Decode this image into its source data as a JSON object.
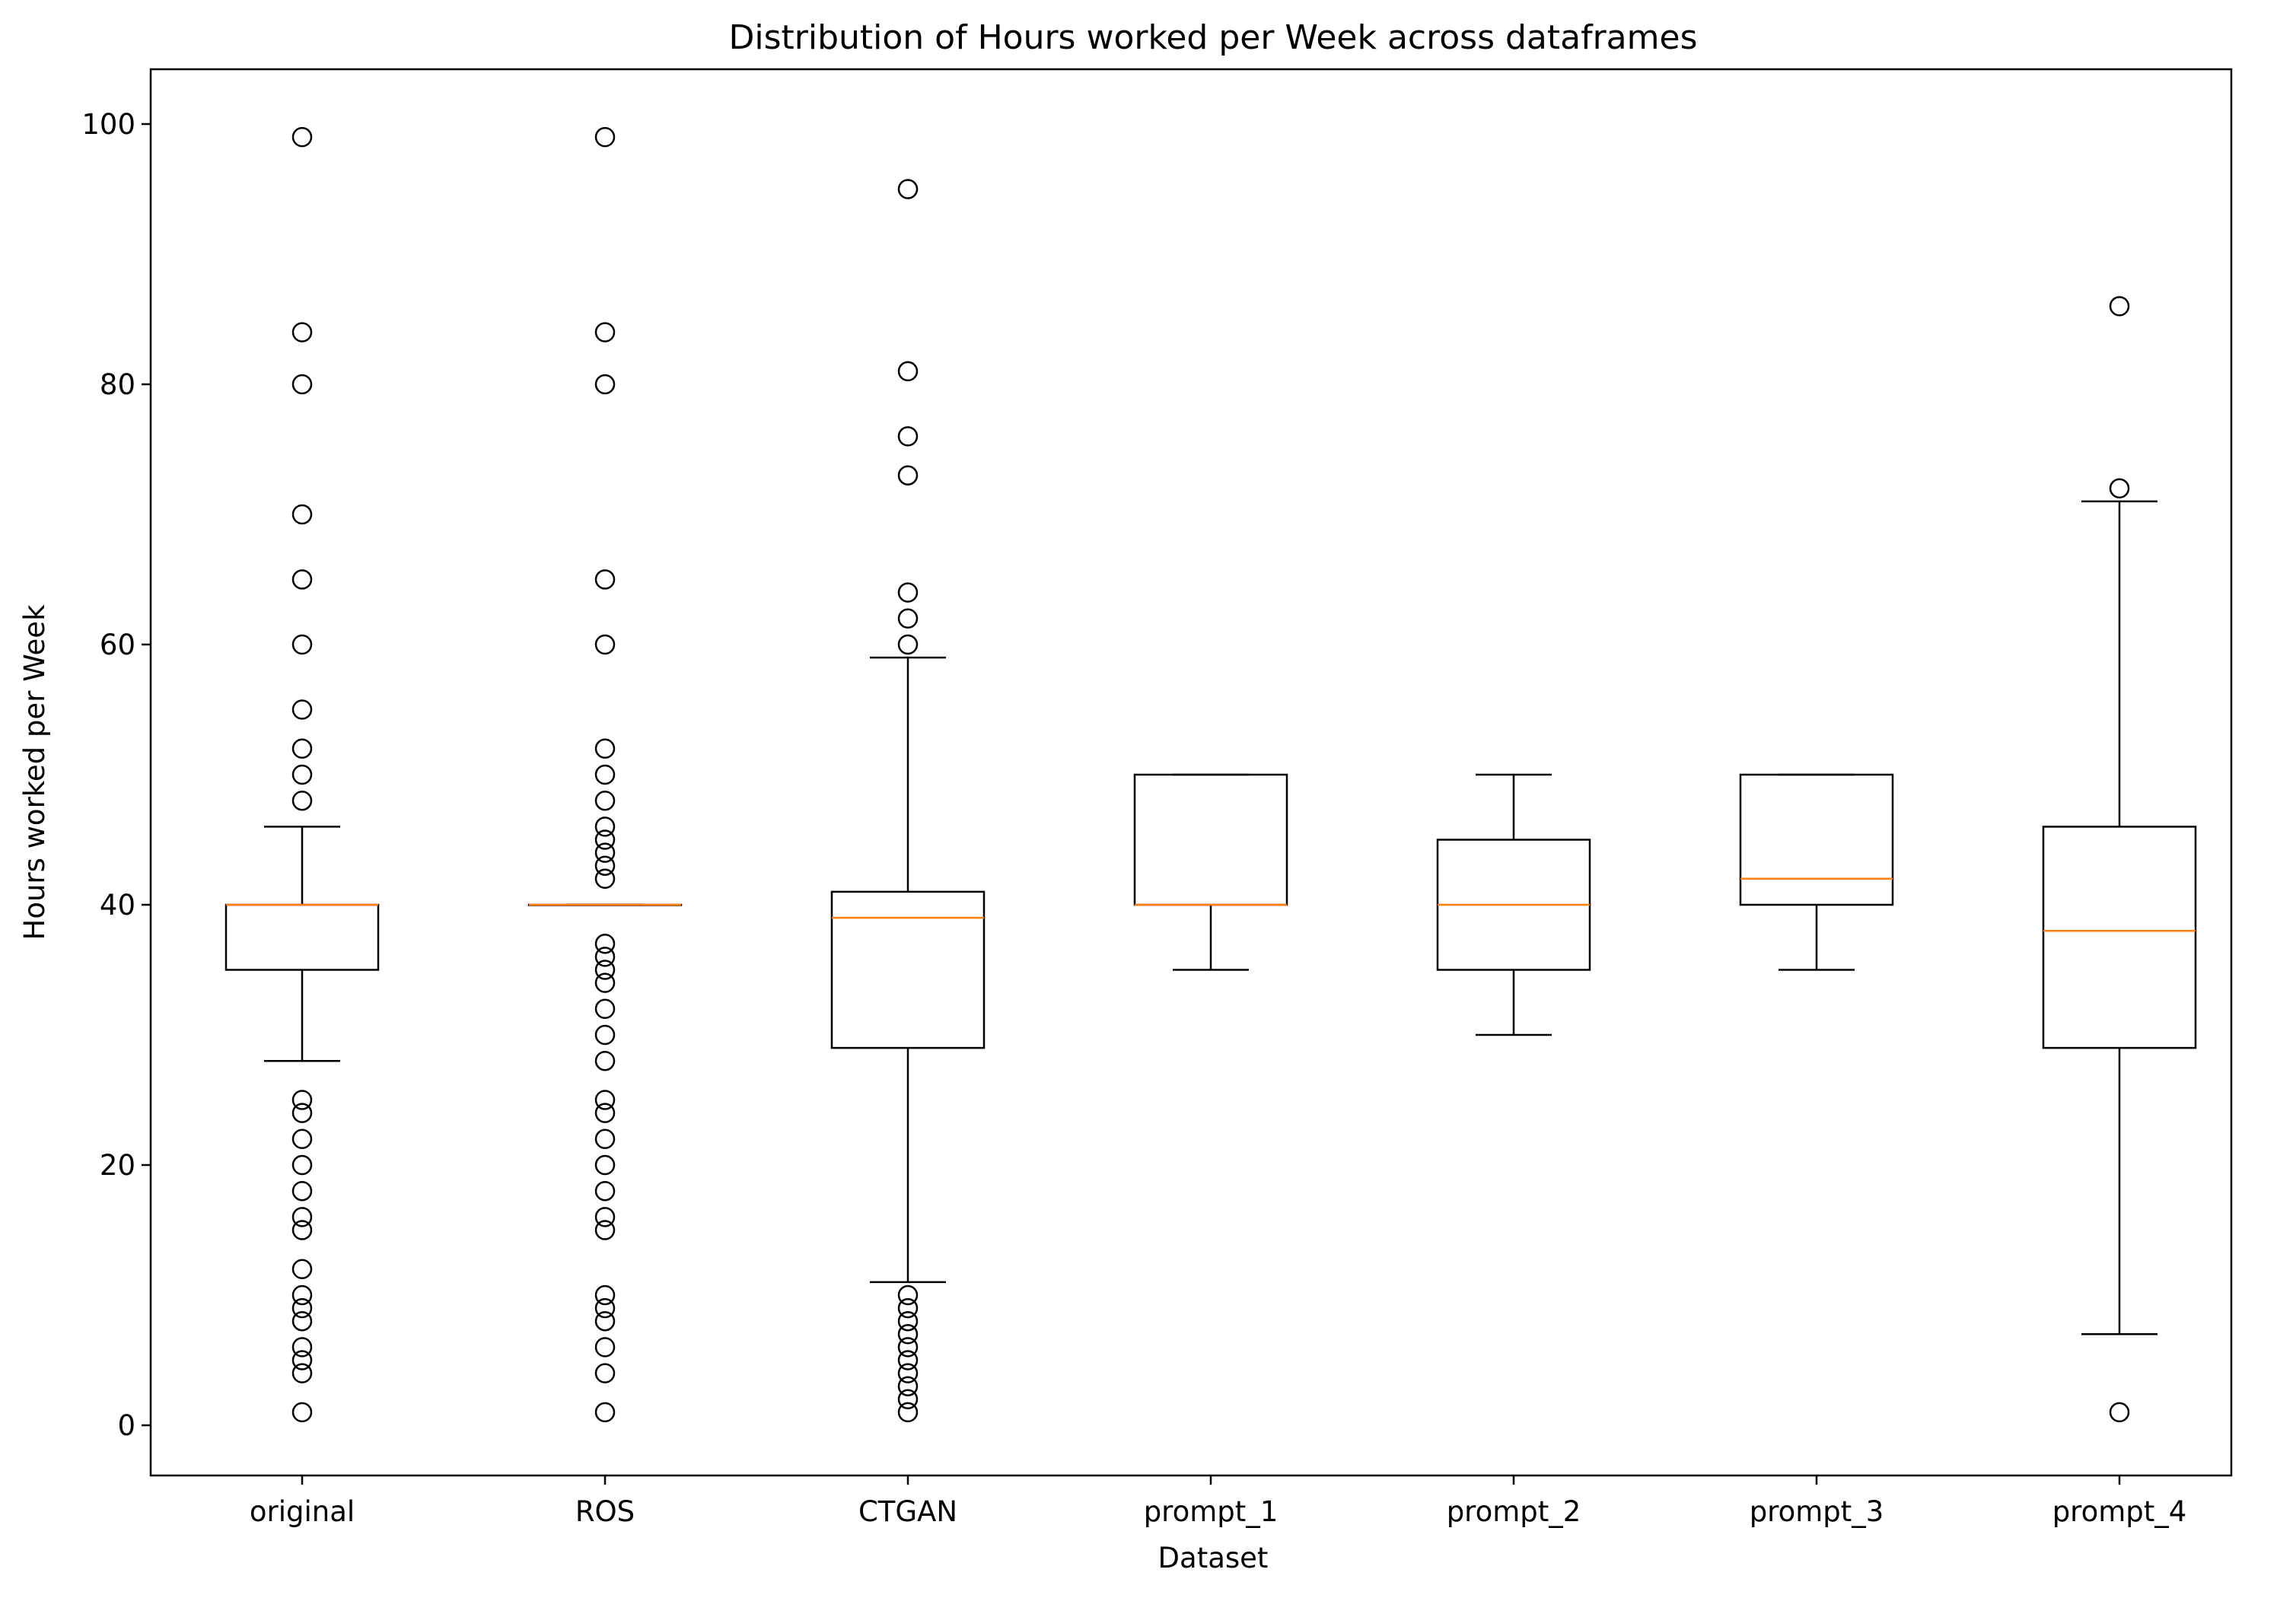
{
  "chart_data": {
    "type": "box",
    "title": "Distribution of Hours worked per Week across dataframes",
    "xlabel": "Dataset",
    "ylabel": "Hours worked per Week",
    "ylim": [
      -4,
      104
    ],
    "yticks": [
      0,
      20,
      40,
      60,
      80,
      100
    ],
    "grid": false,
    "colors": {
      "box": "#000000",
      "median": "#ff7f0e",
      "background": "#ffffff"
    },
    "categories": [
      "original",
      "ROS",
      "CTGAN",
      "prompt_1",
      "prompt_2",
      "prompt_3",
      "prompt_4"
    ],
    "boxes": [
      {
        "name": "original",
        "whisker_low": 28,
        "q1": 35,
        "median": 40,
        "q3": 40,
        "whisker_high": 46,
        "outliers": [
          1,
          4,
          5,
          6,
          8,
          9,
          10,
          12,
          15,
          16,
          18,
          20,
          22,
          24,
          25,
          48,
          50,
          52,
          55,
          60,
          65,
          70,
          80,
          84,
          99
        ]
      },
      {
        "name": "ROS",
        "whisker_low": 40,
        "q1": 40,
        "median": 40,
        "q3": 40,
        "whisker_high": 40,
        "outliers": [
          1,
          4,
          6,
          8,
          9,
          10,
          15,
          16,
          18,
          20,
          22,
          24,
          25,
          28,
          30,
          32,
          34,
          35,
          36,
          37,
          42,
          43,
          44,
          45,
          46,
          48,
          50,
          52,
          60,
          65,
          80,
          84,
          99
        ]
      },
      {
        "name": "CTGAN",
        "whisker_low": 11,
        "q1": 29,
        "median": 39,
        "q3": 41,
        "whisker_high": 59,
        "outliers": [
          1,
          2,
          3,
          4,
          5,
          6,
          7,
          8,
          9,
          10,
          60,
          62,
          64,
          73,
          76,
          81,
          95
        ]
      },
      {
        "name": "prompt_1",
        "whisker_low": 35,
        "q1": 40,
        "median": 40,
        "q3": 50,
        "whisker_high": 50,
        "outliers": []
      },
      {
        "name": "prompt_2",
        "whisker_low": 30,
        "q1": 35,
        "median": 40,
        "q3": 45,
        "whisker_high": 50,
        "outliers": []
      },
      {
        "name": "prompt_3",
        "whisker_low": 35,
        "q1": 40,
        "median": 42,
        "q3": 50,
        "whisker_high": 50,
        "outliers": []
      },
      {
        "name": "prompt_4",
        "whisker_low": 7,
        "q1": 29,
        "median": 38,
        "q3": 46,
        "whisker_high": 71,
        "outliers": [
          1,
          72,
          86
        ]
      }
    ]
  }
}
